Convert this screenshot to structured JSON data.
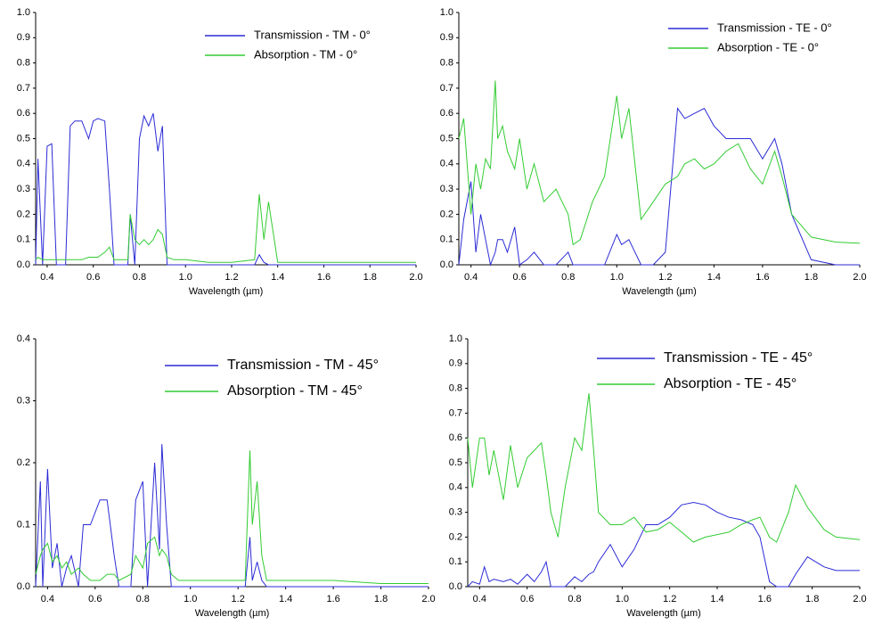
{
  "chart_data": [
    {
      "type": "line",
      "x_label": "Wavelength (µm)",
      "legend": "upper right",
      "xlim": [
        0.35,
        2.0
      ],
      "ylim": [
        0,
        1
      ],
      "xticks": [
        0.4,
        0.6,
        0.8,
        {
          "value": 1,
          "label": "1.0"
        },
        1.2,
        1.4,
        1.6,
        1.8,
        {
          "value": 2,
          "label": "2.0"
        }
      ],
      "yticks": [
        {
          "value": 0,
          "label": "0.0"
        },
        0.1,
        0.2,
        0.3,
        0.4,
        0.5,
        0.6,
        0.7,
        0.8,
        0.9,
        {
          "value": 1,
          "label": "1.0"
        }
      ],
      "x": [
        0.35,
        0.36,
        0.38,
        0.4,
        0.42,
        0.44,
        0.46,
        0.48,
        0.5,
        0.52,
        0.55,
        0.58,
        0.6,
        0.62,
        0.65,
        0.67,
        0.69,
        0.72,
        0.75,
        0.76,
        0.78,
        0.8,
        0.82,
        0.84,
        0.86,
        0.88,
        0.9,
        0.92,
        0.95,
        1.0,
        1.1,
        1.2,
        1.3,
        1.32,
        1.34,
        1.36,
        1.4,
        1.6,
        1.8,
        2.0
      ],
      "series": [
        {
          "name": "Transmission - TM - 0°",
          "color": "#2b2bd6",
          "values": [
            0.0,
            0.42,
            0.0,
            0.47,
            0.48,
            0.0,
            0.0,
            0.0,
            0.55,
            0.57,
            0.57,
            0.5,
            0.57,
            0.58,
            0.57,
            0.3,
            0.0,
            0.0,
            0.0,
            0.2,
            0.0,
            0.5,
            0.59,
            0.55,
            0.6,
            0.45,
            0.55,
            0.0,
            0,
            0,
            0,
            0,
            0,
            0.04,
            0.01,
            0,
            0,
            0,
            0,
            0
          ]
        },
        {
          "name": "Absorption - TM - 0°",
          "color": "#33cc33",
          "values": [
            0.02,
            0.03,
            0.02,
            0.02,
            0.02,
            0.02,
            0.02,
            0.02,
            0.02,
            0.02,
            0.02,
            0.03,
            0.03,
            0.03,
            0.05,
            0.07,
            0.02,
            0.02,
            0.02,
            0.2,
            0.1,
            0.08,
            0.1,
            0.08,
            0.1,
            0.14,
            0.12,
            0.03,
            0.02,
            0.02,
            0.01,
            0.01,
            0.02,
            0.28,
            0.1,
            0.25,
            0.01,
            0.01,
            0.01,
            0.01
          ]
        }
      ]
    },
    {
      "type": "line",
      "x_label": "Wavelength (µm)",
      "legend": "upper right",
      "xlim": [
        0.35,
        2.0
      ],
      "ylim": [
        0,
        1
      ],
      "xticks": [
        0.4,
        0.6,
        0.8,
        {
          "value": 1,
          "label": "1.0"
        },
        1.2,
        1.4,
        1.6,
        1.8,
        {
          "value": 2,
          "label": "2.0"
        }
      ],
      "yticks": [
        {
          "value": 0,
          "label": "0.0"
        },
        0.1,
        0.2,
        0.3,
        0.4,
        0.5,
        0.6,
        0.7,
        0.8,
        0.9,
        {
          "value": 1,
          "label": "1.0"
        }
      ],
      "x": [
        0.35,
        0.37,
        0.4,
        0.42,
        0.44,
        0.46,
        0.48,
        0.5,
        0.51,
        0.53,
        0.55,
        0.58,
        0.6,
        0.63,
        0.66,
        0.7,
        0.75,
        0.8,
        0.82,
        0.85,
        0.9,
        0.95,
        1.0,
        1.02,
        1.05,
        1.1,
        1.15,
        1.2,
        1.25,
        1.28,
        1.32,
        1.36,
        1.4,
        1.45,
        1.5,
        1.55,
        1.6,
        1.65,
        1.68,
        1.72,
        1.8,
        1.9,
        2.0
      ],
      "series": [
        {
          "name": "Transmission - TE - 0°",
          "color": "#2b2bd6",
          "values": [
            0,
            0.18,
            0.33,
            0.05,
            0.2,
            0.1,
            0,
            0.05,
            0.1,
            0.1,
            0.05,
            0.15,
            0,
            0.02,
            0.05,
            0,
            0,
            0.05,
            0,
            0,
            0,
            0,
            0.12,
            0.08,
            0.1,
            0,
            0,
            0.05,
            0.62,
            0.58,
            0.6,
            0.62,
            0.55,
            0.5,
            0.5,
            0.5,
            0.42,
            0.5,
            0.4,
            0.2,
            0.02,
            0,
            0
          ]
        },
        {
          "name": "Absorption - TE - 0°",
          "color": "#33cc33",
          "values": [
            0.5,
            0.58,
            0.2,
            0.4,
            0.3,
            0.42,
            0.38,
            0.73,
            0.5,
            0.55,
            0.45,
            0.38,
            0.5,
            0.3,
            0.4,
            0.25,
            0.3,
            0.2,
            0.08,
            0.1,
            0.25,
            0.35,
            0.67,
            0.5,
            0.62,
            0.18,
            0.25,
            0.32,
            0.35,
            0.4,
            0.42,
            0.38,
            0.4,
            0.45,
            0.48,
            0.38,
            0.32,
            0.45,
            0.35,
            0.2,
            0.11,
            0.09,
            0.085
          ]
        }
      ]
    },
    {
      "type": "line",
      "x_label": "Wavelength (µm)",
      "legend": "upper right",
      "xlim": [
        0.35,
        2.0
      ],
      "ylim": [
        0,
        0.4
      ],
      "xticks": [
        0.4,
        0.6,
        0.8,
        {
          "value": 1,
          "label": "1.0"
        },
        1.2,
        1.4,
        1.6,
        1.8,
        {
          "value": 2,
          "label": "2.0"
        }
      ],
      "yticks": [
        {
          "value": 0,
          "label": "0.0"
        },
        0.1,
        0.2,
        0.3,
        0.4
      ],
      "x": [
        0.35,
        0.37,
        0.38,
        0.4,
        0.42,
        0.44,
        0.46,
        0.48,
        0.5,
        0.53,
        0.55,
        0.58,
        0.62,
        0.65,
        0.68,
        0.7,
        0.75,
        0.77,
        0.8,
        0.82,
        0.85,
        0.87,
        0.88,
        0.9,
        0.92,
        0.95,
        1.0,
        1.2,
        1.23,
        1.25,
        1.26,
        1.28,
        1.3,
        1.32,
        1.4,
        1.6,
        1.8,
        2.0
      ],
      "series": [
        {
          "name": "Transmission - TM - 45°",
          "color": "#2b2bd6",
          "values": [
            0,
            0.17,
            0,
            0.19,
            0.03,
            0.07,
            0,
            0.03,
            0.05,
            0,
            0.1,
            0.1,
            0.14,
            0.14,
            0.05,
            0,
            0,
            0.14,
            0.17,
            0,
            0.2,
            0.06,
            0.23,
            0.1,
            0,
            0,
            0,
            0,
            0,
            0.08,
            0.01,
            0.04,
            0.01,
            0,
            0,
            0,
            0,
            0
          ]
        },
        {
          "name": "Absorption - TM - 45°",
          "color": "#33cc33",
          "values": [
            0.02,
            0.05,
            0.06,
            0.07,
            0.04,
            0.05,
            0.03,
            0.04,
            0.02,
            0.03,
            0.02,
            0.01,
            0.01,
            0.02,
            0.02,
            0.01,
            0.02,
            0.05,
            0.03,
            0.07,
            0.08,
            0.05,
            0.06,
            0.05,
            0.02,
            0.01,
            0.01,
            0.01,
            0.01,
            0.22,
            0.1,
            0.17,
            0.05,
            0.01,
            0.01,
            0.01,
            0.005,
            0.005
          ]
        }
      ]
    },
    {
      "type": "line",
      "x_label": "Wavelength (µm)",
      "legend": "upper right",
      "xlim": [
        0.35,
        2.0
      ],
      "ylim": [
        0,
        1
      ],
      "xticks": [
        0.4,
        0.6,
        0.8,
        {
          "value": 1,
          "label": "1.0"
        },
        1.2,
        1.4,
        1.6,
        1.8,
        {
          "value": 2,
          "label": "2.0"
        }
      ],
      "yticks": [
        {
          "value": 0,
          "label": "0.0"
        },
        0.1,
        0.2,
        0.3,
        0.4,
        0.5,
        0.6,
        0.7,
        0.8,
        0.9,
        {
          "value": 1,
          "label": "1.0"
        }
      ],
      "x": [
        0.35,
        0.37,
        0.4,
        0.42,
        0.44,
        0.46,
        0.5,
        0.53,
        0.56,
        0.6,
        0.63,
        0.66,
        0.68,
        0.7,
        0.73,
        0.76,
        0.8,
        0.83,
        0.86,
        0.88,
        0.9,
        0.95,
        1.0,
        1.05,
        1.1,
        1.15,
        1.2,
        1.25,
        1.3,
        1.35,
        1.4,
        1.45,
        1.5,
        1.55,
        1.58,
        1.62,
        1.65,
        1.7,
        1.73,
        1.78,
        1.85,
        1.9,
        2.0
      ],
      "series": [
        {
          "name": "Transmission - TE - 45°",
          "color": "#2b2bd6",
          "values": [
            0,
            0.02,
            0.01,
            0.08,
            0.02,
            0.03,
            0.02,
            0.03,
            0.01,
            0.05,
            0.02,
            0.06,
            0.1,
            0,
            0,
            0,
            0.04,
            0.02,
            0.05,
            0.06,
            0.1,
            0.17,
            0.08,
            0.15,
            0.25,
            0.25,
            0.28,
            0.33,
            0.34,
            0.33,
            0.3,
            0.28,
            0.27,
            0.25,
            0.2,
            0.02,
            0,
            0,
            0.05,
            0.12,
            0.08,
            0.065,
            0.065
          ]
        },
        {
          "name": "Absorption - TE - 45°",
          "color": "#33cc33",
          "values": [
            0.6,
            0.4,
            0.6,
            0.6,
            0.45,
            0.55,
            0.35,
            0.57,
            0.4,
            0.52,
            0.55,
            0.58,
            0.45,
            0.3,
            0.2,
            0.4,
            0.6,
            0.55,
            0.78,
            0.55,
            0.3,
            0.25,
            0.25,
            0.28,
            0.22,
            0.23,
            0.26,
            0.22,
            0.18,
            0.2,
            0.21,
            0.22,
            0.25,
            0.27,
            0.28,
            0.2,
            0.18,
            0.3,
            0.41,
            0.32,
            0.23,
            0.2,
            0.19
          ]
        }
      ]
    }
  ]
}
